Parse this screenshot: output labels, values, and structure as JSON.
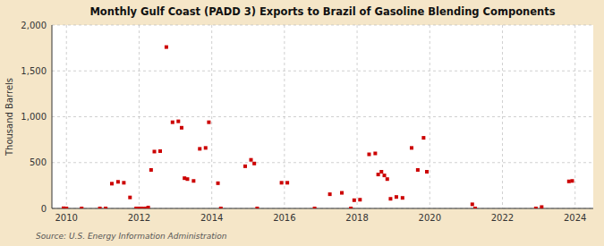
{
  "chart_data": {
    "type": "scatter",
    "title": "Monthly Gulf Coast (PADD 3) Exports to Brazil of Gasoline Blending Components",
    "ylabel": "Thousand Barrels",
    "source": "Source: U.S. Energy Information Administration",
    "color": "#cc0000",
    "marker": "square",
    "grid": true,
    "xlim": [
      2009.6,
      2024.5
    ],
    "xticks": [
      2010,
      2012,
      2014,
      2016,
      2018,
      2020,
      2022,
      2024
    ],
    "ylim": [
      0,
      2000
    ],
    "yticks": [
      0,
      500,
      {
        "value": 1000,
        "label": "1,000"
      },
      {
        "value": 1500,
        "label": "1,500"
      },
      {
        "value": 2000,
        "label": "2,000"
      }
    ],
    "x": [
      2009.92,
      2010.0,
      2010.42,
      2010.92,
      2011.08,
      2011.25,
      2011.42,
      2011.58,
      2011.75,
      2011.92,
      2012.0,
      2012.08,
      2012.17,
      2012.25,
      2012.33,
      2012.42,
      2012.58,
      2012.75,
      2012.92,
      2013.08,
      2013.17,
      2013.25,
      2013.33,
      2013.5,
      2013.67,
      2013.83,
      2013.92,
      2014.17,
      2014.25,
      2014.92,
      2015.08,
      2015.17,
      2015.25,
      2015.92,
      2016.08,
      2016.83,
      2017.25,
      2017.58,
      2017.83,
      2017.92,
      2018.08,
      2018.33,
      2018.5,
      2018.58,
      2018.67,
      2018.75,
      2018.83,
      2018.92,
      2019.08,
      2019.25,
      2019.5,
      2019.67,
      2019.83,
      2019.92,
      2021.17,
      2021.25,
      2022.92,
      2023.08,
      2023.83,
      2023.92
    ],
    "values": [
      2,
      0,
      0,
      0,
      0,
      270,
      290,
      280,
      120,
      0,
      0,
      0,
      0,
      10,
      420,
      620,
      625,
      1760,
      940,
      950,
      880,
      330,
      320,
      300,
      650,
      660,
      940,
      275,
      0,
      460,
      530,
      490,
      0,
      280,
      280,
      0,
      155,
      170,
      0,
      90,
      95,
      590,
      600,
      370,
      400,
      360,
      320,
      105,
      125,
      115,
      660,
      420,
      770,
      400,
      45,
      0,
      0,
      15,
      295,
      300
    ]
  }
}
